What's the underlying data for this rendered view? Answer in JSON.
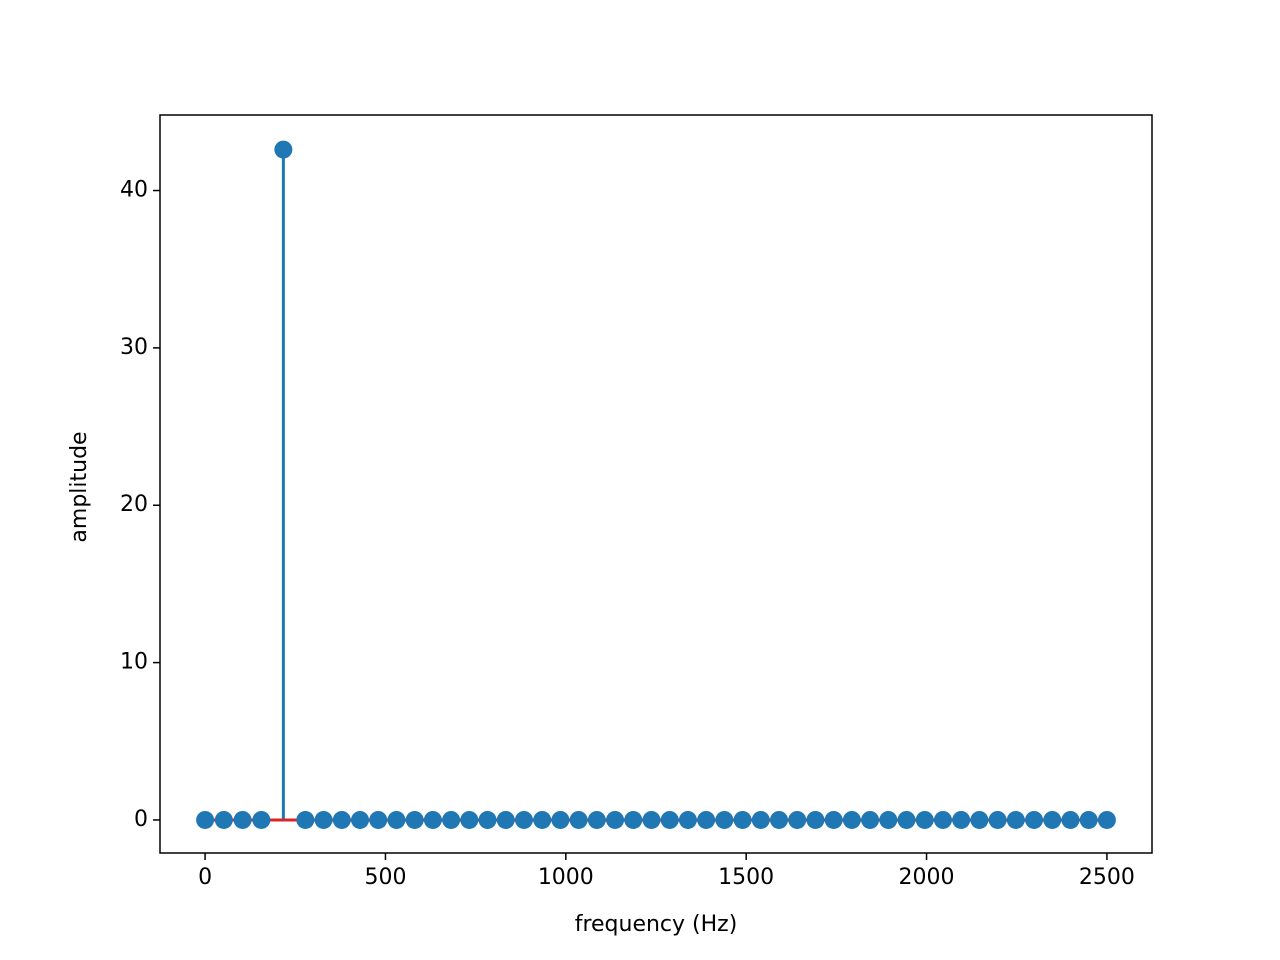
{
  "chart_data": {
    "type": "stem",
    "x_label": "frequency (Hz)",
    "y_label": "amplitude",
    "x": [
      0,
      52,
      104,
      156,
      217,
      278,
      328.5,
      379,
      429.5,
      480,
      530.5,
      581,
      631.5,
      682,
      732.5,
      783,
      833.5,
      884,
      934.5,
      985,
      1035.5,
      1086,
      1136.5,
      1187,
      1237.5,
      1288,
      1338.5,
      1389,
      1439.5,
      1490,
      1540.5,
      1591,
      1641.5,
      1692,
      1742.5,
      1793,
      1843.5,
      1894,
      1944.5,
      1995,
      2045.5,
      2096,
      2146.5,
      2197,
      2247.5,
      2298,
      2348.5,
      2399,
      2449.5,
      2500
    ],
    "values": [
      0,
      0,
      0,
      0,
      42.6,
      0,
      0,
      0,
      0,
      0,
      0,
      0,
      0,
      0,
      0,
      0,
      0,
      0,
      0,
      0,
      0,
      0,
      0,
      0,
      0,
      0,
      0,
      0,
      0,
      0,
      0,
      0,
      0,
      0,
      0,
      0,
      0,
      0,
      0,
      0,
      0,
      0,
      0,
      0,
      0,
      0,
      0,
      0,
      0,
      0
    ],
    "color": "#1f77b4",
    "baseline_color": "#d62728",
    "xlim": [
      -125,
      2625
    ],
    "xticks": [
      0,
      500,
      1000,
      1500,
      2000,
      2500
    ],
    "ylim": [
      -2.1,
      44.8
    ],
    "yticks": [
      0,
      10,
      20,
      30,
      40
    ],
    "grid": false
  }
}
